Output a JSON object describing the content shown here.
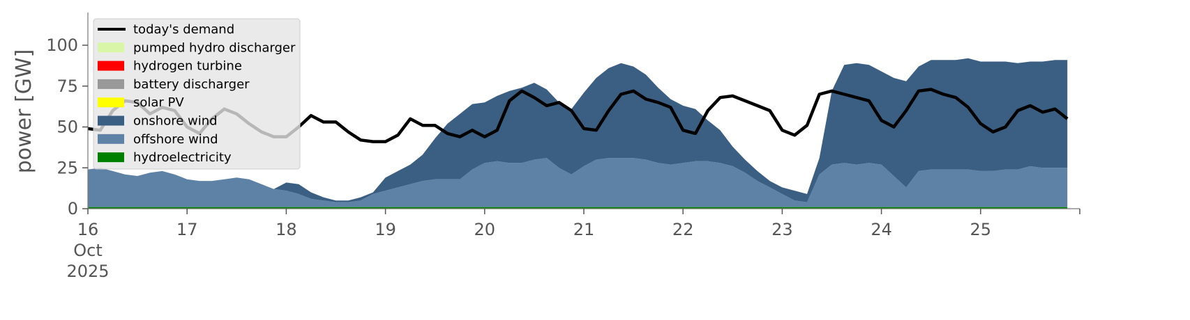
{
  "chart_data": {
    "type": "area",
    "title": "",
    "xlabel": "",
    "ylabel": "power [GW]",
    "ylim": [
      0,
      120
    ],
    "yticks": [
      0,
      25,
      50,
      75,
      100
    ],
    "x_start": "2025-10-16T00:00",
    "x_end": "2025-10-26T00:00",
    "x_step_hours": 3,
    "xtick_labels": [
      {
        "day": 16,
        "label": "16",
        "sub1": "Oct",
        "sub2": "2025"
      },
      {
        "day": 17,
        "label": "17"
      },
      {
        "day": 18,
        "label": "18"
      },
      {
        "day": 19,
        "label": "19"
      },
      {
        "day": 20,
        "label": "20"
      },
      {
        "day": 21,
        "label": "21"
      },
      {
        "day": 22,
        "label": "22"
      },
      {
        "day": 23,
        "label": "23"
      },
      {
        "day": 24,
        "label": "24"
      },
      {
        "day": 25,
        "label": "25"
      }
    ],
    "grid": false,
    "legend_position": "top-left",
    "legend": [
      {
        "name": "today's demand",
        "color": "#000000",
        "kind": "line"
      },
      {
        "name": "pumped hydro discharger",
        "color": "#d9f5a8",
        "kind": "patch"
      },
      {
        "name": "hydrogen turbine",
        "color": "#ff0000",
        "kind": "patch"
      },
      {
        "name": "battery discharger",
        "color": "#999999",
        "kind": "patch"
      },
      {
        "name": "solar PV",
        "color": "#ffff00",
        "kind": "patch"
      },
      {
        "name": "onshore wind",
        "color": "#3b5f82",
        "kind": "patch"
      },
      {
        "name": "offshore wind",
        "color": "#5d82a6",
        "kind": "patch"
      },
      {
        "name": "hydroelectricity",
        "color": "#008000",
        "kind": "patch"
      }
    ],
    "series": [
      {
        "name": "hydroelectricity",
        "color": "#008000",
        "values": [
          1,
          1,
          1,
          1,
          1,
          1,
          1,
          1,
          1,
          1,
          1,
          1,
          1,
          1,
          1,
          1,
          1,
          1,
          1,
          1,
          1,
          1,
          1,
          1,
          1,
          1,
          1,
          1,
          1,
          1,
          1,
          1,
          1,
          1,
          1,
          1,
          1,
          1,
          1,
          1,
          1,
          1,
          1,
          1,
          1,
          1,
          1,
          1,
          1,
          1,
          1,
          1,
          1,
          1,
          1,
          1,
          1,
          1,
          1,
          1,
          1,
          1,
          1,
          1,
          1,
          1,
          1,
          1,
          1,
          1,
          1,
          1,
          1,
          1,
          1,
          1,
          1,
          1,
          1,
          1
        ]
      },
      {
        "name": "offshore wind",
        "color": "#5d82a6",
        "values": [
          23,
          24,
          22,
          20,
          19,
          21,
          22,
          20,
          17,
          16,
          16,
          17,
          18,
          17,
          14,
          11,
          10,
          8,
          5,
          4,
          3,
          3,
          4,
          8,
          10,
          12,
          14,
          16,
          17,
          17,
          17,
          23,
          27,
          28,
          27,
          27,
          29,
          30,
          24,
          20,
          25,
          29,
          30,
          30,
          30,
          29,
          27,
          26,
          27,
          28,
          28,
          27,
          25,
          21,
          16,
          12,
          8,
          4,
          3,
          20,
          26,
          27,
          26,
          27,
          26,
          19,
          12,
          22,
          23,
          23,
          23,
          23,
          22,
          22,
          23,
          23,
          25,
          24,
          24,
          24
        ]
      },
      {
        "name": "onshore wind",
        "color": "#3b5f82",
        "values": [
          0,
          0,
          0,
          0,
          0,
          0,
          0,
          0,
          0,
          0,
          0,
          0,
          0,
          0,
          0,
          0,
          5,
          6,
          4,
          2,
          1,
          1,
          2,
          1,
          8,
          10,
          12,
          16,
          25,
          34,
          40,
          40,
          37,
          40,
          44,
          46,
          47,
          42,
          40,
          40,
          45,
          50,
          55,
          58,
          56,
          52,
          46,
          40,
          35,
          32,
          25,
          20,
          12,
          8,
          6,
          4,
          4,
          6,
          5,
          10,
          45,
          60,
          62,
          60,
          57,
          60,
          65,
          64,
          67,
          67,
          67,
          68,
          67,
          67,
          66,
          65,
          64,
          65,
          66,
          66
        ]
      },
      {
        "name": "solar PV",
        "color": "#ffff00",
        "values": [
          0,
          0,
          0,
          0,
          0,
          0,
          0,
          0,
          0,
          0,
          0,
          0,
          0,
          0,
          0,
          0,
          0,
          0,
          0,
          0,
          0,
          0,
          0,
          0,
          0,
          0,
          0,
          0,
          0,
          0,
          0,
          0,
          0,
          0,
          0,
          0,
          0,
          0,
          0,
          0,
          0,
          0,
          0,
          0,
          0,
          0,
          0,
          0,
          0,
          0,
          0,
          0,
          0,
          0,
          0,
          0,
          0,
          0,
          0,
          0,
          0,
          0,
          0,
          0,
          0,
          0,
          0,
          0,
          0,
          0,
          0,
          0,
          0,
          0,
          0,
          0,
          0,
          0,
          0,
          0
        ]
      },
      {
        "name": "battery discharger",
        "color": "#999999",
        "values": [
          0,
          0,
          0,
          0,
          0,
          0,
          0,
          0,
          0,
          0,
          0,
          0,
          0,
          0,
          0,
          0,
          0,
          0,
          0,
          0,
          0,
          0,
          0,
          0,
          0,
          0,
          0,
          0,
          0,
          0,
          0,
          0,
          0,
          0,
          0,
          0,
          0,
          0,
          0,
          0,
          0,
          0,
          0,
          0,
          0,
          0,
          0,
          0,
          0,
          0,
          0,
          0,
          0,
          0,
          0,
          0,
          0,
          0,
          0,
          0,
          0,
          0,
          0,
          0,
          0,
          0,
          0,
          0,
          0,
          0,
          0,
          0,
          0,
          0,
          0,
          0,
          0,
          0,
          0,
          0
        ]
      },
      {
        "name": "hydrogen turbine",
        "color": "#ff0000",
        "values": [
          0,
          0,
          0,
          0,
          0,
          0,
          0,
          0,
          0,
          0,
          0,
          0,
          0,
          0,
          0,
          0,
          0,
          0,
          0,
          0,
          0,
          0,
          0,
          0,
          0,
          0,
          0,
          0,
          0,
          0,
          0,
          0,
          0,
          0,
          0,
          0,
          0,
          0,
          0,
          0,
          0,
          0,
          0,
          0,
          0,
          0,
          0,
          0,
          0,
          0,
          0,
          0,
          0,
          0,
          0,
          0,
          0,
          0,
          0,
          0,
          0,
          0,
          0,
          0,
          0,
          0,
          0,
          0,
          0,
          0,
          0,
          0,
          0,
          0,
          0,
          0,
          0,
          0,
          0,
          0
        ]
      },
      {
        "name": "pumped hydro discharger",
        "color": "#d9f5a8",
        "values": [
          0,
          0,
          0,
          0,
          0,
          0,
          0,
          0,
          0,
          0,
          0,
          0,
          0,
          0,
          0,
          0,
          0,
          0,
          0,
          0,
          0,
          0,
          0,
          0,
          0,
          0,
          0,
          0,
          0,
          0,
          0,
          0,
          0,
          0,
          0,
          0,
          0,
          0,
          0,
          0,
          0,
          0,
          0,
          0,
          0,
          0,
          0,
          0,
          0,
          0,
          0,
          0,
          0,
          0,
          0,
          0,
          0,
          0,
          0,
          0,
          0,
          0,
          0,
          0,
          0,
          0,
          0,
          0,
          0,
          0,
          0,
          0,
          0,
          0,
          0,
          0,
          0,
          0,
          0,
          0
        ]
      },
      {
        "name": "today's demand",
        "color": "#000000",
        "kind": "line",
        "values": [
          49,
          48,
          60,
          66,
          65,
          58,
          62,
          60,
          50,
          46,
          55,
          61,
          58,
          52,
          47,
          44,
          44,
          50,
          57,
          53,
          53,
          47,
          42,
          41,
          41,
          45,
          55,
          51,
          51,
          46,
          44,
          48,
          44,
          48,
          66,
          72,
          68,
          63,
          65,
          60,
          49,
          48,
          60,
          70,
          72,
          67,
          65,
          62,
          48,
          46,
          60,
          68,
          69,
          66,
          63,
          60,
          48,
          45,
          51,
          70,
          72,
          70,
          68,
          66,
          54,
          50,
          60,
          72,
          73,
          70,
          68,
          62,
          52,
          47,
          50,
          60,
          63,
          59,
          61,
          55
        ]
      }
    ],
    "notes_visible_only": ""
  }
}
